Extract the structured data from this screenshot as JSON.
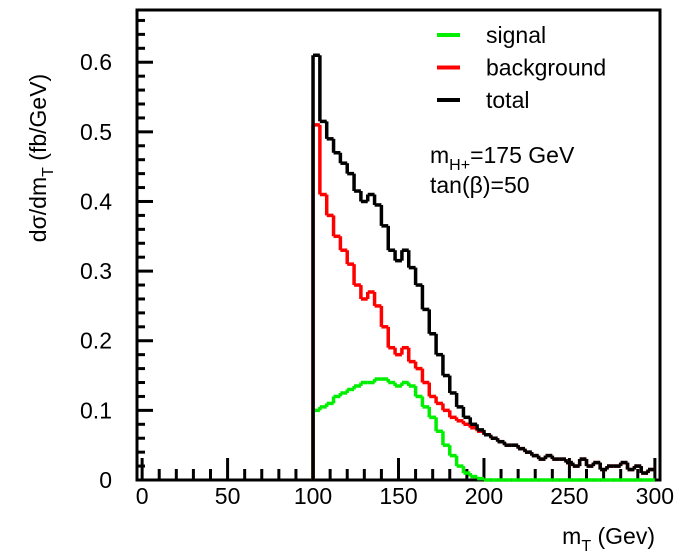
{
  "chart_data": {
    "type": "histogram",
    "xlabel": {
      "main": "m",
      "sub": "T",
      "rest": " (Gev)"
    },
    "ylabel": {
      "main": "dσ/dm",
      "sub": "T",
      "rest": " (fb/GeV)"
    },
    "annotations": [
      {
        "main": "m",
        "sub": "H+",
        "rest": "=175 GeV"
      },
      {
        "main": "tan(β)=50"
      }
    ],
    "bins": [
      100,
      104,
      108,
      112,
      116,
      120,
      124,
      128,
      132,
      136,
      140,
      144,
      148,
      152,
      156,
      160,
      164,
      168,
      172,
      176,
      180,
      184,
      188,
      192,
      196,
      200,
      204,
      208,
      212,
      216,
      220,
      224,
      228,
      232,
      236,
      240,
      244,
      248,
      252,
      256,
      260,
      264,
      268,
      272,
      276,
      280,
      284,
      288,
      292,
      296,
      300
    ],
    "series": [
      {
        "name": "signal",
        "color": "#00ee00",
        "values": [
          0.1,
          0.105,
          0.11,
          0.12,
          0.125,
          0.13,
          0.135,
          0.14,
          0.14,
          0.145,
          0.145,
          0.14,
          0.135,
          0.14,
          0.135,
          0.12,
          0.105,
          0.09,
          0.07,
          0.05,
          0.035,
          0.02,
          0.01,
          0.005,
          0.002,
          0,
          0,
          0,
          0,
          0,
          0,
          0,
          0,
          0,
          0,
          0,
          0,
          0,
          0,
          0,
          0,
          0,
          0,
          0,
          0,
          0,
          0,
          0,
          0,
          0
        ]
      },
      {
        "name": "background",
        "color": "#ff0000",
        "values": [
          0.51,
          0.41,
          0.38,
          0.35,
          0.33,
          0.31,
          0.28,
          0.26,
          0.27,
          0.25,
          0.22,
          0.19,
          0.18,
          0.19,
          0.17,
          0.16,
          0.14,
          0.12,
          0.11,
          0.1,
          0.09,
          0.085,
          0.08,
          0.075,
          0.07,
          0.065,
          0.06,
          0.055,
          0.05,
          0.05,
          0.045,
          0.04,
          0.035,
          0.03,
          0.035,
          0.03,
          0.03,
          0.025,
          0.02,
          0.03,
          0.02,
          0.025,
          0.015,
          0.02,
          0.02,
          0.025,
          0.015,
          0.02,
          0.01,
          0.015
        ]
      },
      {
        "name": "total",
        "color": "#000000",
        "values": [
          0.61,
          0.515,
          0.49,
          0.47,
          0.455,
          0.44,
          0.415,
          0.4,
          0.41,
          0.395,
          0.365,
          0.33,
          0.315,
          0.33,
          0.305,
          0.28,
          0.245,
          0.21,
          0.18,
          0.15,
          0.125,
          0.105,
          0.09,
          0.08,
          0.072,
          0.065,
          0.06,
          0.055,
          0.05,
          0.05,
          0.045,
          0.04,
          0.035,
          0.03,
          0.035,
          0.03,
          0.03,
          0.025,
          0.02,
          0.03,
          0.02,
          0.025,
          0.015,
          0.02,
          0.02,
          0.025,
          0.015,
          0.02,
          0.01,
          0.015
        ]
      }
    ],
    "xlim": [
      -3,
      303
    ],
    "ylim": [
      0,
      0.675
    ],
    "xticks": [
      0,
      50,
      100,
      150,
      200,
      250,
      300
    ],
    "yticks": [
      0,
      0.1,
      0.2,
      0.3,
      0.4,
      0.5,
      0.6
    ],
    "xminorticks": [
      10,
      20,
      30,
      40,
      60,
      70,
      80,
      90,
      110,
      120,
      130,
      140,
      160,
      170,
      180,
      190,
      210,
      220,
      230,
      240,
      260,
      270,
      280,
      290
    ],
    "yminorticks": [
      0.02,
      0.04,
      0.06,
      0.08,
      0.12,
      0.14,
      0.16,
      0.18,
      0.22,
      0.24,
      0.26,
      0.28,
      0.32,
      0.34,
      0.36,
      0.38,
      0.42,
      0.44,
      0.46,
      0.48,
      0.52,
      0.54,
      0.56,
      0.58,
      0.62,
      0.64,
      0.66
    ]
  }
}
